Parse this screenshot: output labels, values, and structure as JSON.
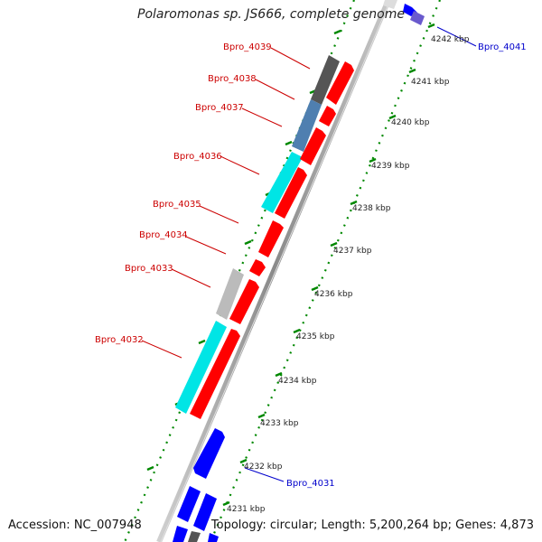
{
  "header": {
    "title": "Polaromonas sp. JS666, complete genome"
  },
  "footer": {
    "accession": "Accession: NC_007948",
    "topology": "Topology: circular; Length: 5,200,264 bp; Genes: 4,873"
  },
  "scale": {
    "ticks": [
      "4242 kbp",
      "4241 kbp",
      "4240 kbp",
      "4239 kbp",
      "4238 kbp",
      "4237 kbp",
      "4236 kbp",
      "4235 kbp",
      "4234 kbp",
      "4233 kbp",
      "4232 kbp",
      "4231 kbp"
    ]
  },
  "genes": [
    {
      "id": "Bpro_4041",
      "color": "#0000cc"
    },
    {
      "id": "Bpro_4039",
      "color": "#cc0000"
    },
    {
      "id": "Bpro_4038",
      "color": "#cc0000"
    },
    {
      "id": "Bpro_4037",
      "color": "#cc0000"
    },
    {
      "id": "Bpro_4036",
      "color": "#cc0000"
    },
    {
      "id": "Bpro_4035",
      "color": "#cc0000"
    },
    {
      "id": "Bpro_4034",
      "color": "#cc0000"
    },
    {
      "id": "Bpro_4033",
      "color": "#cc0000"
    },
    {
      "id": "Bpro_4032",
      "color": "#cc0000"
    },
    {
      "id": "Bpro_4031",
      "color": "#0000cc"
    }
  ],
  "colors": {
    "forward_cds": "#ff0000",
    "reverse_cds": "#0000ff",
    "backbone": "#999999",
    "tick_marks": "#008800",
    "gene_label_red": "#cc0000",
    "gene_label_blue": "#0000cc"
  }
}
